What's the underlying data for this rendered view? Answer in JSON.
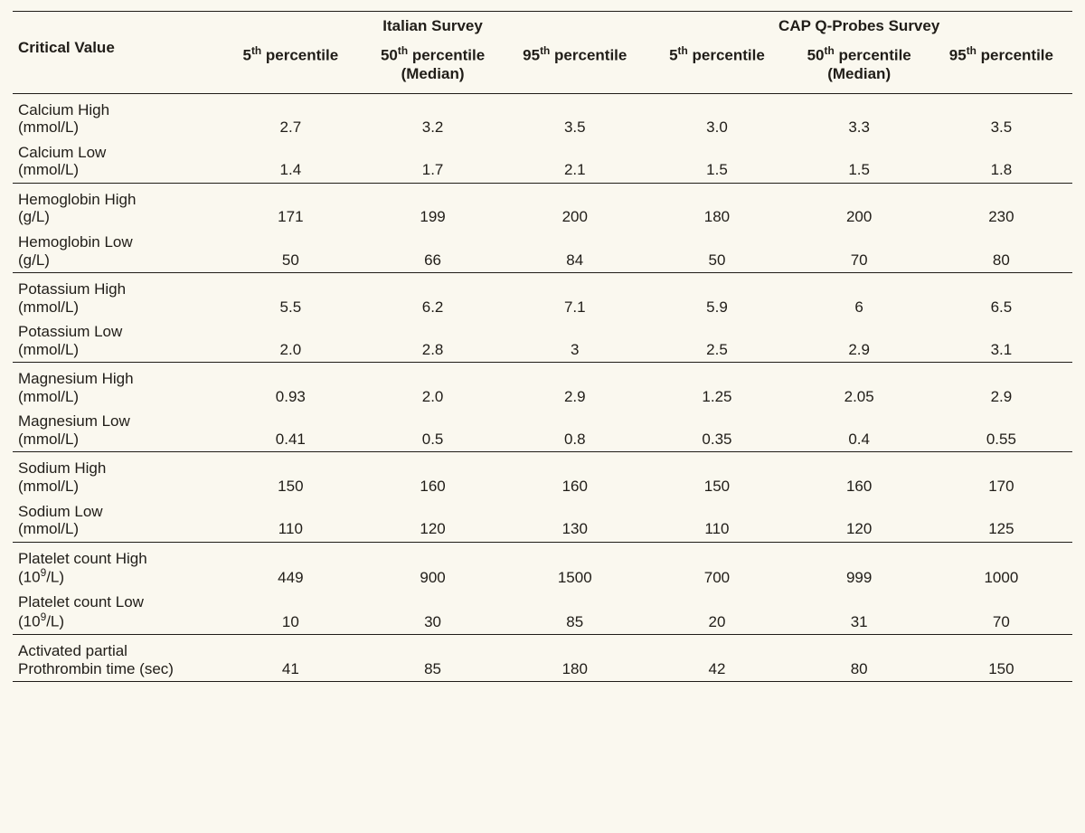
{
  "table": {
    "type": "table",
    "background_color": "#faf8ef",
    "text_color": "#201d18",
    "rule_color": "#201d18",
    "font_family": "Myriad Pro / sans-serif",
    "header_fontsize_pt": 13,
    "body_fontsize_pt": 13,
    "header": {
      "critical_value": "Critical Value",
      "surveys": [
        "Italian Survey",
        "CAP Q-Probes Survey"
      ],
      "percentile_labels": {
        "p5_pre": "5",
        "p5_sup": "th",
        "p5_post": " percentile",
        "p50_pre": "50",
        "p50_sup": "th",
        "p50_post": " percentile",
        "median_line": "(Median)",
        "p95_pre": "95",
        "p95_sup": "th",
        "p95_post": " percentile"
      }
    },
    "groups": [
      {
        "rows": [
          {
            "label_line1": "Calcium High",
            "label_line2": "(mmol/L)",
            "it": [
              "2.7",
              "3.2",
              "3.5"
            ],
            "cap": [
              "3.0",
              "3.3",
              "3.5"
            ]
          },
          {
            "label_line1": "Calcium Low",
            "label_line2": "(mmol/L)",
            "it": [
              "1.4",
              "1.7",
              "2.1"
            ],
            "cap": [
              "1.5",
              "1.5",
              "1.8"
            ]
          }
        ]
      },
      {
        "rows": [
          {
            "label_line1": "Hemoglobin High",
            "label_line2": "(g/L)",
            "it": [
              "171",
              "199",
              "200"
            ],
            "cap": [
              "180",
              "200",
              "230"
            ]
          },
          {
            "label_line1": "Hemoglobin Low",
            "label_line2": "(g/L)",
            "it": [
              "50",
              "66",
              "84"
            ],
            "cap": [
              "50",
              "70",
              "80"
            ]
          }
        ]
      },
      {
        "rows": [
          {
            "label_line1": "Potassium High",
            "label_line2": "(mmol/L)",
            "it": [
              "5.5",
              "6.2",
              "7.1"
            ],
            "cap": [
              "5.9",
              "6",
              "6.5"
            ]
          },
          {
            "label_line1": "Potassium Low",
            "label_line2": "(mmol/L)",
            "it": [
              "2.0",
              "2.8",
              "3"
            ],
            "cap": [
              "2.5",
              "2.9",
              "3.1"
            ]
          }
        ]
      },
      {
        "rows": [
          {
            "label_line1": "Magnesium High",
            "label_line2": "(mmol/L)",
            "it": [
              "0.93",
              "2.0",
              "2.9"
            ],
            "cap": [
              "1.25",
              "2.05",
              "2.9"
            ]
          },
          {
            "label_line1": "Magnesium Low",
            "label_line2": "(mmol/L)",
            "it": [
              "0.41",
              "0.5",
              "0.8"
            ],
            "cap": [
              "0.35",
              "0.4",
              "0.55"
            ]
          }
        ]
      },
      {
        "rows": [
          {
            "label_line1": "Sodium High",
            "label_line2": "(mmol/L)",
            "it": [
              "150",
              "160",
              "160"
            ],
            "cap": [
              "150",
              "160",
              "170"
            ]
          },
          {
            "label_line1": "Sodium Low",
            "label_line2": "(mmol/L)",
            "it": [
              "110",
              "120",
              "130"
            ],
            "cap": [
              "110",
              "120",
              "125"
            ]
          }
        ]
      },
      {
        "rows": [
          {
            "label_line1": "Platelet count High",
            "label_line2_pre": "(10",
            "label_line2_sup": "9",
            "label_line2_post": "/L)",
            "it": [
              "449",
              "900",
              "1500"
            ],
            "cap": [
              "700",
              "999",
              "1000"
            ]
          },
          {
            "label_line1": "Platelet count Low",
            "label_line2_pre": "(10",
            "label_line2_sup": "9",
            "label_line2_post": "/L)",
            "it": [
              "10",
              "30",
              "85"
            ],
            "cap": [
              "20",
              "31",
              "70"
            ]
          }
        ]
      },
      {
        "rows": [
          {
            "label_line1": "Activated partial",
            "label_line2": "Prothrombin time (sec)",
            "it": [
              "41",
              "85",
              "180"
            ],
            "cap": [
              "42",
              "80",
              "150"
            ]
          }
        ]
      }
    ]
  }
}
